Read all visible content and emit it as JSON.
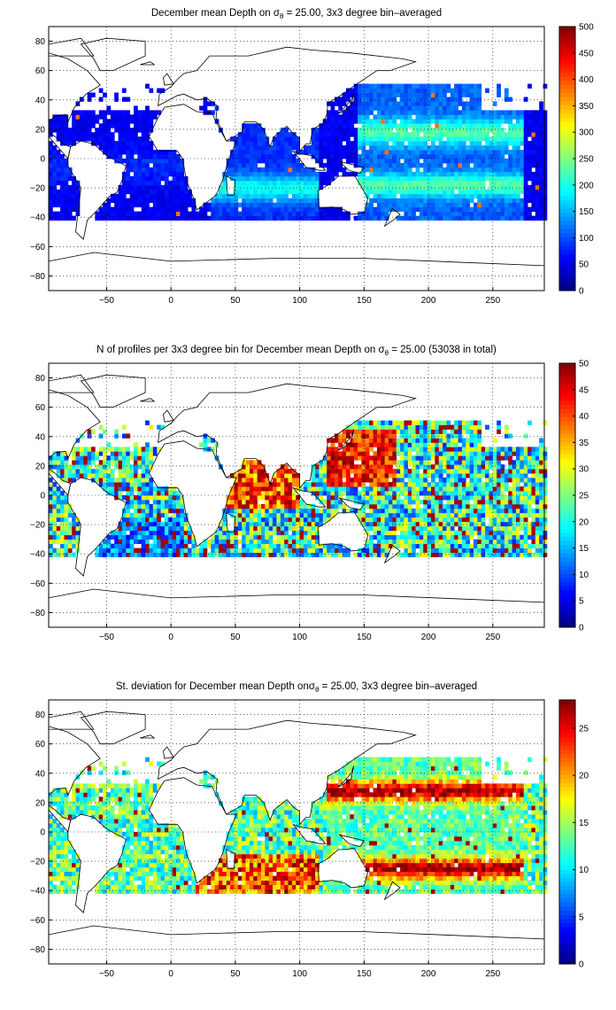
{
  "colors": {
    "colormap": "jet",
    "land": "#ffffff",
    "coastline": "#000000",
    "grid": "#000000"
  },
  "chart_data": [
    {
      "type": "heatmap",
      "title": {
        "pre": "December mean Depth on ",
        "sym": "σ",
        "sub": "θ",
        "post": " = 25.00, 3x3 degree bin–averaged"
      },
      "xlim": [
        -95,
        290
      ],
      "ylim": [
        -90,
        90
      ],
      "xticks": [
        -50,
        0,
        50,
        100,
        150,
        200,
        250
      ],
      "xtick_labels": [
        "−50",
        "0",
        "50",
        "100",
        "150",
        "200",
        "250"
      ],
      "yticks": [
        -80,
        -60,
        -40,
        -20,
        0,
        20,
        40,
        60,
        80
      ],
      "ytick_labels": [
        "−80",
        "−60",
        "−40",
        "−20",
        "0",
        "20",
        "40",
        "60",
        "80"
      ],
      "grid": true,
      "clim": [
        0,
        500
      ],
      "cticks": [
        0,
        50,
        100,
        150,
        200,
        250,
        300,
        350,
        400,
        450,
        500
      ],
      "ctick_labels": [
        "0",
        "50",
        "100",
        "150",
        "200",
        "250",
        "300",
        "350",
        "400",
        "450",
        "500"
      ],
      "field": "depth",
      "bin_size_deg": 3,
      "data_extent": {
        "lat": [
          -42,
          50
        ]
      }
    },
    {
      "type": "heatmap",
      "title": {
        "pre": "N of profiles per 3x3 degree bin for December mean Depth on ",
        "sym": "σ",
        "sub": "θ",
        "post": " = 25.00 (53038 in total)"
      },
      "xlim": [
        -95,
        290
      ],
      "ylim": [
        -90,
        90
      ],
      "xticks": [
        -50,
        0,
        50,
        100,
        150,
        200,
        250
      ],
      "xtick_labels": [
        "−50",
        "0",
        "50",
        "100",
        "150",
        "200",
        "250"
      ],
      "yticks": [
        -80,
        -60,
        -40,
        -20,
        0,
        20,
        40,
        60,
        80
      ],
      "ytick_labels": [
        "−80",
        "−60",
        "−40",
        "−20",
        "0",
        "20",
        "40",
        "60",
        "80"
      ],
      "grid": true,
      "clim": [
        0,
        50
      ],
      "cticks": [
        0,
        5,
        10,
        15,
        20,
        25,
        30,
        35,
        40,
        45,
        50
      ],
      "ctick_labels": [
        "0",
        "5",
        "10",
        "15",
        "20",
        "25",
        "30",
        "35",
        "40",
        "45",
        "50"
      ],
      "field": "count",
      "bin_size_deg": 3,
      "data_extent": {
        "lat": [
          -42,
          50
        ]
      }
    },
    {
      "type": "heatmap",
      "title": {
        "pre": "St. deviation for December mean Depth on",
        "sym": "σ",
        "sub": "θ",
        "post": " = 25.00, 3x3 degree bin–averaged"
      },
      "xlim": [
        -95,
        290
      ],
      "ylim": [
        -90,
        90
      ],
      "xticks": [
        -50,
        0,
        50,
        100,
        150,
        200,
        250
      ],
      "xtick_labels": [
        "−50",
        "0",
        "50",
        "100",
        "150",
        "200",
        "250"
      ],
      "yticks": [
        -80,
        -60,
        -40,
        -20,
        0,
        20,
        40,
        60,
        80
      ],
      "ytick_labels": [
        "−80",
        "−60",
        "−40",
        "−20",
        "0",
        "20",
        "40",
        "60",
        "80"
      ],
      "grid": true,
      "clim": [
        0,
        28
      ],
      "cticks": [
        0,
        5,
        10,
        15,
        20,
        25
      ],
      "ctick_labels": [
        "0",
        "5",
        "10",
        "15",
        "20",
        "25"
      ],
      "field": "stdev",
      "bin_size_deg": 3,
      "data_extent": {
        "lat": [
          -42,
          50
        ]
      }
    }
  ]
}
